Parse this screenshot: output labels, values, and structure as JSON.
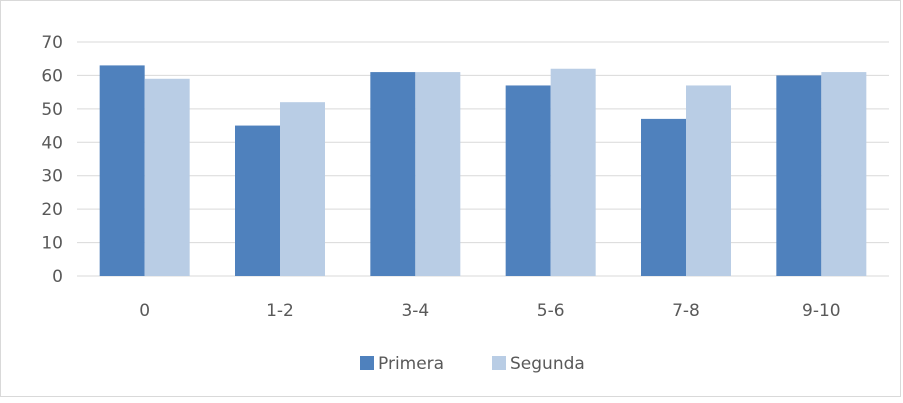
{
  "chart_data": {
    "type": "bar",
    "title": "",
    "xlabel": "",
    "ylabel": "",
    "categories": [
      "0",
      "1-2",
      "3-4",
      "5-6",
      "7-8",
      "9-10"
    ],
    "series": [
      {
        "name": "Primera",
        "values": [
          63,
          45,
          61,
          57,
          47,
          60
        ],
        "color": "#4f81bd"
      },
      {
        "name": "Segunda",
        "values": [
          59,
          52,
          61,
          62,
          57,
          61
        ],
        "color": "#b9cde5"
      }
    ],
    "ylim": [
      0,
      70
    ],
    "yticks": [
      "0",
      "10",
      "20",
      "30",
      "40",
      "50",
      "60",
      "70"
    ],
    "grid": true,
    "legend_position": "bottom-center"
  },
  "colors": {
    "gridline": "#d9d9d9",
    "axis_text": "#595959"
  }
}
